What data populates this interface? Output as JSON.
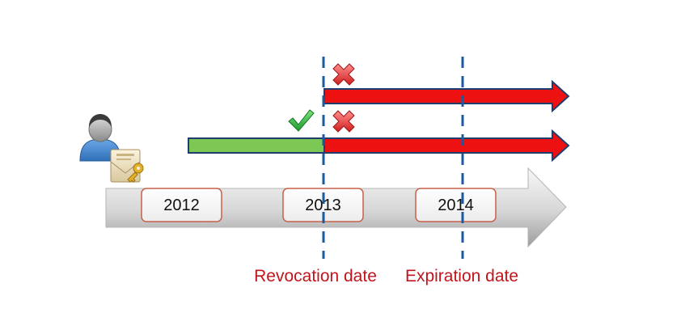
{
  "timeline": {
    "years": [
      "2012",
      "2013",
      "2014"
    ]
  },
  "markers": {
    "revocation_label": "Revocation date",
    "expiration_label": "Expiration date"
  },
  "colors": {
    "valid": "#7dc855",
    "invalid": "#ee1111",
    "arrow_outline": "#1f3d6e",
    "dashed_line": "#1b5a9e",
    "caption": "#c0151c",
    "year_box_border": "#c8614a"
  },
  "icons": {
    "user": "user-icon",
    "certificate": "certificate-key-icon",
    "valid_mark": "green-check-icon",
    "invalid_mark": "red-x-icon"
  }
}
